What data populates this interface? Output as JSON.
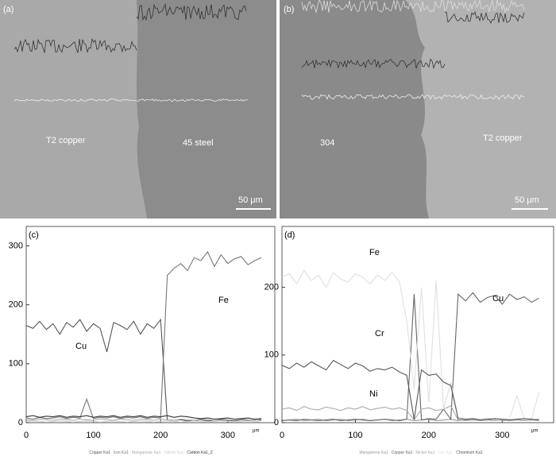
{
  "images": [
    {
      "label": "(a)",
      "regions": [
        "T2 copper",
        "45 steel"
      ],
      "scale_bar": "50 μm"
    },
    {
      "label": "(b)",
      "regions": [
        "304",
        "T2 copper"
      ],
      "scale_bar": "50 μm"
    }
  ],
  "chart_data": [
    {
      "type": "line",
      "label": "(c)",
      "x_unit": "μm",
      "x": [
        0,
        10,
        20,
        30,
        40,
        50,
        60,
        70,
        80,
        90,
        100,
        110,
        120,
        130,
        140,
        150,
        160,
        170,
        180,
        190,
        200,
        210,
        220,
        230,
        240,
        250,
        260,
        270,
        280,
        290,
        300,
        310,
        320,
        330,
        340,
        350
      ],
      "xlim": [
        0,
        370
      ],
      "xticks": [
        0,
        100,
        200,
        300
      ],
      "ylim": [
        0,
        333
      ],
      "yticks": [
        0,
        100,
        200,
        300
      ],
      "annotations": [
        "Cu",
        "Fe"
      ],
      "series": [
        {
          "name": "Copper Ka1",
          "color": "#555555",
          "values": [
            165,
            160,
            172,
            158,
            168,
            150,
            170,
            162,
            175,
            155,
            168,
            160,
            120,
            170,
            165,
            158,
            172,
            150,
            168,
            160,
            175,
            5,
            4,
            5,
            3,
            4,
            5,
            3,
            4,
            5,
            4,
            3,
            5,
            4,
            5,
            4
          ]
        },
        {
          "name": "Iron Ka1",
          "color": "#777777",
          "values": [
            8,
            6,
            9,
            7,
            8,
            10,
            7,
            9,
            8,
            40,
            7,
            9,
            8,
            10,
            7,
            9,
            8,
            10,
            7,
            9,
            8,
            250,
            262,
            270,
            258,
            280,
            275,
            290,
            265,
            285,
            270,
            278,
            282,
            268,
            275,
            280
          ]
        },
        {
          "name": "Manganese Ka1",
          "color": "#aaaaaa",
          "values": [
            5,
            4,
            6,
            5,
            4,
            6,
            5,
            4,
            6,
            5,
            4,
            6,
            5,
            4,
            6,
            5,
            4,
            6,
            5,
            4,
            6,
            5,
            4,
            6,
            5,
            4,
            6,
            5,
            4,
            6,
            5,
            4,
            6,
            5,
            4,
            6
          ]
        },
        {
          "name": "Silicon Ka1",
          "color": "#cccccc",
          "values": [
            2,
            3,
            2,
            1,
            2,
            3,
            2,
            1,
            2,
            3,
            2,
            1,
            2,
            3,
            2,
            1,
            2,
            3,
            2,
            1,
            2,
            3,
            2,
            1,
            2,
            3,
            2,
            1,
            2,
            3,
            2,
            1,
            2,
            3,
            2,
            1
          ]
        },
        {
          "name": "Carbon Ka1_2",
          "color": "#333333",
          "values": [
            10,
            12,
            9,
            11,
            10,
            12,
            9,
            11,
            10,
            12,
            9,
            11,
            10,
            12,
            9,
            11,
            10,
            12,
            9,
            11,
            10,
            12,
            9,
            11,
            10,
            8,
            7,
            8,
            6,
            7,
            8,
            6,
            7,
            8,
            6,
            7
          ]
        }
      ]
    },
    {
      "type": "line",
      "label": "(d)",
      "x_unit": "μm",
      "x": [
        0,
        10,
        20,
        30,
        40,
        50,
        60,
        70,
        80,
        90,
        100,
        110,
        120,
        130,
        140,
        150,
        160,
        170,
        180,
        190,
        200,
        210,
        220,
        230,
        240,
        250,
        260,
        270,
        280,
        290,
        300,
        310,
        320,
        330,
        340,
        350
      ],
      "xlim": [
        0,
        370
      ],
      "xticks": [
        0,
        100,
        200,
        300
      ],
      "ylim": [
        0,
        290
      ],
      "yticks": [
        0,
        100,
        200
      ],
      "annotations": [
        "Fe",
        "Cu",
        "Cr",
        "Ni"
      ],
      "series": [
        {
          "name": "Manganese Ka1",
          "color": "#999999",
          "values": [
            3,
            4,
            5,
            3,
            4,
            5,
            3,
            4,
            5,
            3,
            4,
            5,
            3,
            4,
            5,
            3,
            4,
            5,
            3,
            4,
            5,
            3,
            4,
            5,
            3,
            4,
            5,
            3,
            4,
            5,
            3,
            4,
            5,
            3,
            4,
            5
          ]
        },
        {
          "name": "Copper Ka1",
          "color": "#666666",
          "values": [
            3,
            4,
            3,
            5,
            4,
            3,
            4,
            5,
            3,
            4,
            5,
            4,
            3,
            4,
            5,
            4,
            3,
            5,
            190,
            4,
            6,
            5,
            20,
            5,
            190,
            180,
            192,
            178,
            185,
            188,
            175,
            190,
            182,
            186,
            178,
            184
          ]
        },
        {
          "name": "Nickel Ka1",
          "color": "#aaaaaa",
          "values": [
            20,
            22,
            18,
            24,
            20,
            19,
            23,
            21,
            18,
            22,
            20,
            24,
            19,
            21,
            23,
            20,
            22,
            18,
            4,
            20,
            22,
            18,
            20,
            25,
            4,
            3,
            4,
            3,
            4,
            3,
            4,
            3,
            4,
            3,
            4,
            3
          ]
        },
        {
          "name": "Iron Ka1",
          "color": "#e0e0e0",
          "values": [
            215,
            220,
            205,
            225,
            210,
            218,
            200,
            222,
            212,
            208,
            220,
            215,
            205,
            218,
            210,
            222,
            208,
            150,
            50,
            200,
            30,
            210,
            20,
            60,
            8,
            5,
            6,
            5,
            7,
            4,
            5,
            6,
            40,
            5,
            6,
            45
          ]
        },
        {
          "name": "Chromium Ka1",
          "color": "#555555",
          "values": [
            85,
            80,
            88,
            82,
            90,
            84,
            78,
            92,
            86,
            80,
            88,
            84,
            76,
            80,
            78,
            82,
            75,
            70,
            5,
            78,
            70,
            72,
            60,
            55,
            6,
            5,
            6,
            4,
            5,
            6,
            5,
            4,
            5,
            6,
            5,
            4
          ]
        }
      ]
    }
  ]
}
